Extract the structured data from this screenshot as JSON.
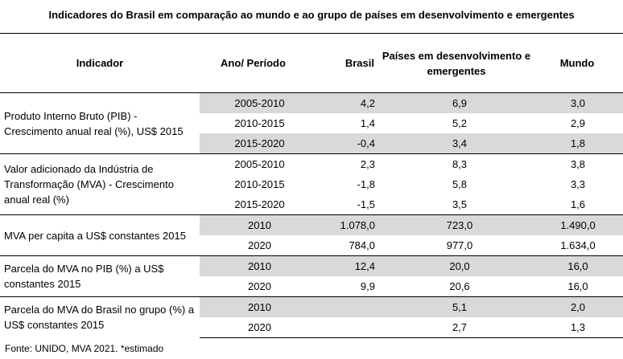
{
  "title": "Indicadores do Brasil em comparação ao mundo e ao grupo de países em desenvolvimento e emergentes",
  "headers": {
    "indicador": "Indicador",
    "ano": "Ano/ Período",
    "brasil": "Brasil",
    "pde": "Países em desenvolvimento e emergentes",
    "mundo": "Mundo"
  },
  "groups": [
    {
      "indicador": "Produto Interno Bruto (PIB) - Crescimento anual real (%), US$ 2015",
      "rows": [
        {
          "ano": "2005-2010",
          "brasil": "4,2",
          "pde": "6,9",
          "mundo": "3,0"
        },
        {
          "ano": "2010-2015",
          "brasil": "1,4",
          "pde": "5,2",
          "mundo": "2,9"
        },
        {
          "ano": "2015-2020",
          "brasil": "-0,4",
          "pde": "3,4",
          "mundo": "1,8"
        }
      ]
    },
    {
      "indicador": "Valor adicionado da Indústria de Transformação (MVA) - Crescimento anual real (%)",
      "rows": [
        {
          "ano": "2005-2010",
          "brasil": "2,3",
          "pde": "8,3",
          "mundo": "3,8"
        },
        {
          "ano": "2010-2015",
          "brasil": "-1,8",
          "pde": "5,8",
          "mundo": "3,3"
        },
        {
          "ano": "2015-2020",
          "brasil": "-1,5",
          "pde": "3,5",
          "mundo": "1,6"
        }
      ]
    },
    {
      "indicador": "MVA per capita a US$ constantes 2015",
      "rows": [
        {
          "ano": "2010",
          "brasil": "1.078,0",
          "pde": "723,0",
          "mundo": "1.490,0"
        },
        {
          "ano": "2020",
          "brasil": "784,0",
          "pde": "977,0",
          "mundo": "1.634,0"
        }
      ]
    },
    {
      "indicador": "Parcela do MVA no PIB (%) a US$ constantes 2015",
      "rows": [
        {
          "ano": "2010",
          "brasil": "12,4",
          "pde": "20,0",
          "mundo": "16,0"
        },
        {
          "ano": "2020",
          "brasil": "9,9",
          "pde": "20,6",
          "mundo": "16,0"
        }
      ]
    },
    {
      "indicador": "Parcela do MVA do Brasil no  grupo (%) a US$ constantes 2015",
      "rows": [
        {
          "ano": "2010",
          "brasil": "",
          "pde": "5,1",
          "mundo": "2,0"
        },
        {
          "ano": "2020",
          "brasil": "",
          "pde": "2,7",
          "mundo": "1,3"
        }
      ]
    }
  ],
  "shade_color": "#d9d9d9",
  "source": "Fonte: UNIDO, MVA 2021. *estimado"
}
